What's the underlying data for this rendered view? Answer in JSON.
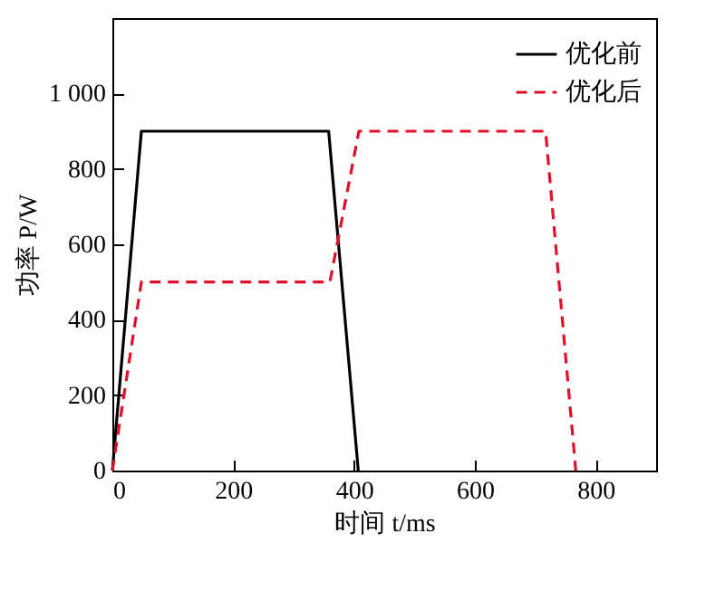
{
  "chart_data": {
    "type": "line",
    "xlabel": "时间 t/ms",
    "ylabel": "功率 P/W",
    "xlim": [
      0,
      900
    ],
    "xticks": [
      0,
      200,
      400,
      600,
      800
    ],
    "ylim": [
      0,
      1200
    ],
    "yticks": [
      0,
      200,
      400,
      600,
      800,
      {
        "value": 1000,
        "label": "1 000"
      }
    ],
    "grid": false,
    "legend": "top right",
    "marker": "none",
    "series": [
      {
        "name": "优化前",
        "color": "#000000",
        "line_style": "solid",
        "x": [
          0,
          48,
          358,
          407
        ],
        "values": [
          0,
          900,
          900,
          0
        ]
      },
      {
        "name": "优化后",
        "color": "#e0102a",
        "line_style": "dashed",
        "x": [
          0,
          48,
          360,
          408,
          717,
          767
        ],
        "values": [
          0,
          500,
          500,
          900,
          900,
          0
        ]
      }
    ]
  }
}
